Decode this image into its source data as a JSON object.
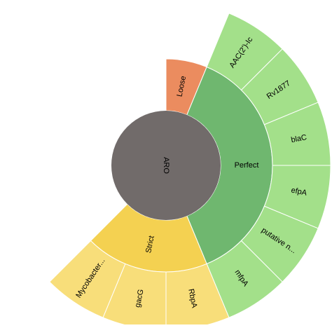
{
  "chart_data": {
    "type": "sunburst",
    "root": {
      "label": "ARO",
      "color": "#716b6a"
    },
    "unit_angle_deg": 22.5,
    "start_deg": 0,
    "groups": [
      {
        "label": "Loose",
        "color": "#eb8c5f",
        "children": []
      },
      {
        "label": "Perfect",
        "color": "#6fb76f",
        "children": [
          {
            "label": "AAC(2')-Ic",
            "color": "#a3e08a"
          },
          {
            "label": "Rv1877",
            "color": "#a3e08a"
          },
          {
            "label": "blaC",
            "color": "#a3e08a"
          },
          {
            "label": "efpA",
            "color": "#a3e08a"
          },
          {
            "label": "putative n...",
            "color": "#a3e08a"
          },
          {
            "label": "mfpA",
            "color": "#a3e08a"
          }
        ]
      },
      {
        "label": "Strict",
        "color": "#f4d151",
        "children": [
          {
            "label": "RbpA",
            "color": "#f8de7a"
          },
          {
            "label": "gacG",
            "color": "#f8de7a"
          },
          {
            "label": "Mycobacter...",
            "color": "#f8de7a"
          }
        ]
      }
    ]
  }
}
